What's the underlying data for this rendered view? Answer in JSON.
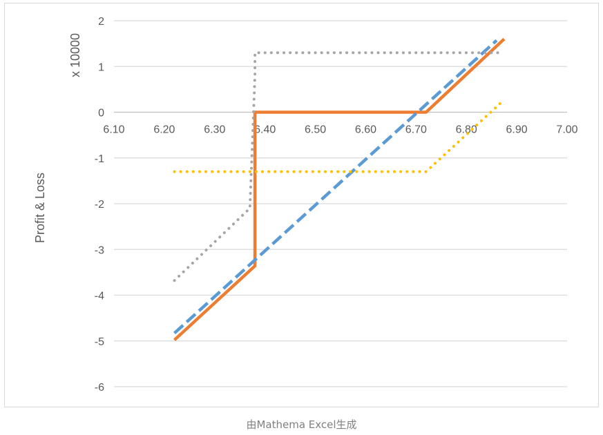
{
  "chart_data": {
    "type": "line",
    "title": "",
    "xlabel": "",
    "ylabel": "Profit & Loss",
    "y_unit_label": "x 10000",
    "xlim": [
      6.1,
      7.0
    ],
    "ylim": [
      -6,
      2
    ],
    "x_ticks": [
      "6.10",
      "6.20",
      "6.30",
      "6.40",
      "6.50",
      "6.60",
      "6.70",
      "6.80",
      "6.90",
      "7.00"
    ],
    "y_ticks": [
      "2",
      "1",
      "0",
      "-1",
      "-2",
      "-3",
      "-4",
      "-5",
      "-6"
    ],
    "grid": true,
    "legend": "none",
    "series": [
      {
        "color": "#ED7D31",
        "style": "solid",
        "points": [
          [
            6.22,
            -4.98
          ],
          [
            6.38,
            -3.36
          ],
          [
            6.38,
            0.0
          ],
          [
            6.72,
            0.0
          ],
          [
            6.875,
            1.6
          ]
        ]
      },
      {
        "color": "#5B9BD5",
        "style": "dashed",
        "points": [
          [
            6.22,
            -4.83
          ],
          [
            6.86,
            1.57
          ]
        ]
      },
      {
        "color": "#A5A5A5",
        "style": "dotted",
        "points": [
          [
            6.22,
            -3.68
          ],
          [
            6.37,
            -2.1
          ],
          [
            6.38,
            0.8
          ],
          [
            6.38,
            1.3
          ],
          [
            6.87,
            1.3
          ]
        ]
      },
      {
        "color": "#FFC000",
        "style": "dotted",
        "points": [
          [
            6.22,
            -1.3
          ],
          [
            6.72,
            -1.3
          ],
          [
            6.87,
            0.22
          ]
        ]
      }
    ]
  },
  "caption": "由Mathema Excel生成"
}
